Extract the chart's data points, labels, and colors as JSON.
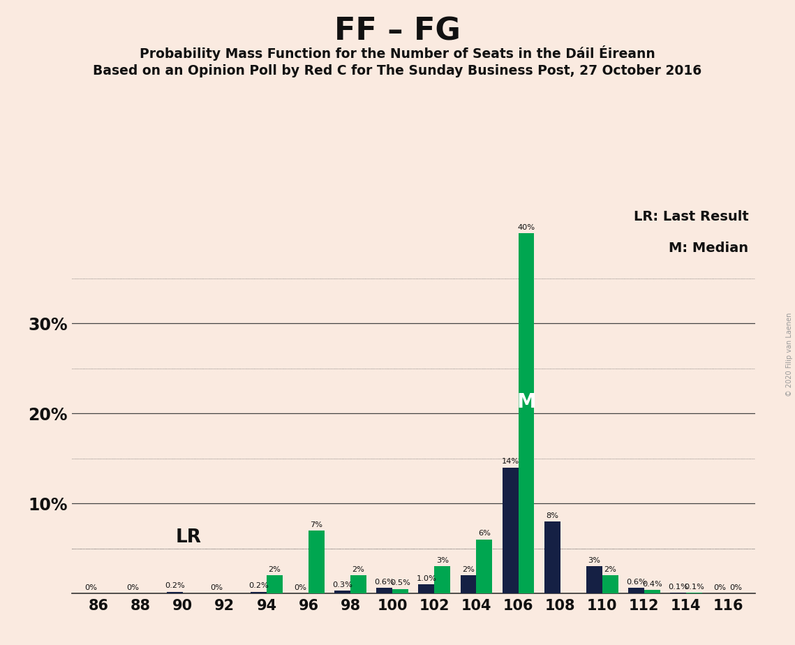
{
  "title": "FF – FG",
  "subtitle1": "Probability Mass Function for the Number of Seats in the Dáil Éireann",
  "subtitle2": "Based on an Opinion Poll by Red C for The Sunday Business Post, 27 October 2016",
  "copyright_text": "© 2020 Filip van Laenen",
  "legend_lr": "LR: Last Result",
  "legend_m": "M: Median",
  "background_color": "#faeae0",
  "bar_color_navy": "#152044",
  "bar_color_green": "#00a650",
  "seats": [
    86,
    88,
    90,
    92,
    94,
    96,
    98,
    100,
    102,
    104,
    106,
    108,
    110,
    112,
    114,
    116
  ],
  "navy_values": [
    0.0,
    0.0,
    0.2,
    0.0,
    0.2,
    0.0,
    0.3,
    0.6,
    1.0,
    2.0,
    14.0,
    8.0,
    3.0,
    0.6,
    0.1,
    0.0
  ],
  "green_values": [
    0.0,
    0.0,
    0.0,
    0.0,
    2.0,
    7.0,
    2.0,
    0.5,
    3.0,
    6.0,
    40.0,
    0.0,
    2.0,
    0.4,
    0.1,
    0.0
  ],
  "navy_labels": [
    "0%",
    "0%",
    "0.2%",
    "0%",
    "0.2%",
    "0%",
    "0.3%",
    "0.6%",
    "1.0%",
    "2%",
    "14%",
    "8%",
    "3%",
    "0.6%",
    "0.1%",
    "0%"
  ],
  "green_labels": [
    "",
    "",
    "",
    "",
    "2%",
    "7%",
    "2%",
    "0.5%",
    "3%",
    "6%",
    "40%",
    "",
    "2%",
    "0.4%",
    "0.1%",
    "0%"
  ],
  "lr_seat": 92,
  "median_seat": 106,
  "ylim_max": 43,
  "major_yticks": [
    10,
    20,
    30
  ],
  "minor_yticks": [
    5,
    15,
    25,
    35
  ],
  "bar_width": 0.38
}
